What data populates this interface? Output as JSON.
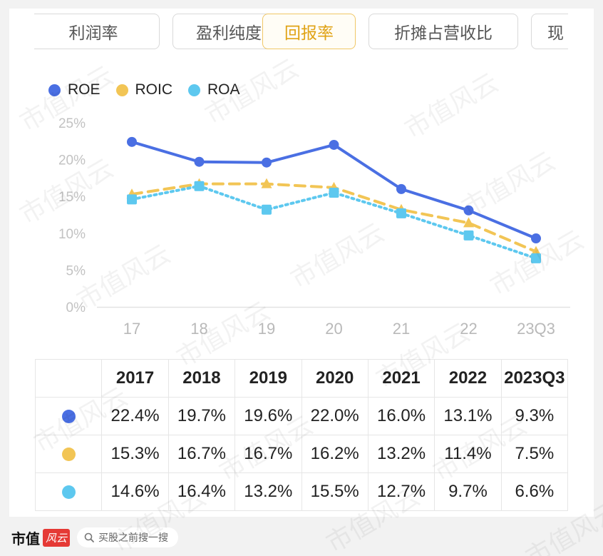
{
  "tabs": [
    {
      "label": "利润率",
      "active": false
    },
    {
      "label": "盈利纯度",
      "active": false
    },
    {
      "label": "回报率",
      "active": true
    },
    {
      "label": "折摊占营收比",
      "active": false
    },
    {
      "label": "现",
      "active": false
    }
  ],
  "colors": {
    "roe": "#4a6fe3",
    "roic": "#f2c555",
    "roa": "#5dc8ef",
    "active_tab": "#e0a316"
  },
  "chart_data": {
    "type": "line",
    "categories": [
      "17",
      "18",
      "19",
      "20",
      "21",
      "22",
      "23Q3"
    ],
    "series": [
      {
        "name": "ROE",
        "values": [
          22.4,
          19.7,
          19.6,
          22.0,
          16.0,
          13.1,
          9.3
        ],
        "style": "solid",
        "marker": "circle"
      },
      {
        "name": "ROIC",
        "values": [
          15.3,
          16.7,
          16.7,
          16.2,
          13.2,
          11.4,
          7.5
        ],
        "style": "dashed",
        "marker": "triangle"
      },
      {
        "name": "ROA",
        "values": [
          14.6,
          16.4,
          13.2,
          15.5,
          12.7,
          9.7,
          6.6
        ],
        "style": "dotted",
        "marker": "square"
      }
    ],
    "ylim": [
      0,
      25
    ],
    "yticks": [
      "0%",
      "5%",
      "10%",
      "15%",
      "20%",
      "25%"
    ],
    "legend": "top-left",
    "grid": false
  },
  "table": {
    "headers": [
      "",
      "2017",
      "2018",
      "2019",
      "2020",
      "2021",
      "2022",
      "2023Q3"
    ],
    "rows": [
      {
        "series": "roe",
        "cells": [
          "22.4%",
          "19.7%",
          "19.6%",
          "22.0%",
          "16.0%",
          "13.1%",
          "9.3%"
        ]
      },
      {
        "series": "roic",
        "cells": [
          "15.3%",
          "16.7%",
          "16.7%",
          "16.2%",
          "13.2%",
          "11.4%",
          "7.5%"
        ]
      },
      {
        "series": "roa",
        "cells": [
          "14.6%",
          "16.4%",
          "13.2%",
          "15.5%",
          "12.7%",
          "9.7%",
          "6.6%"
        ]
      }
    ]
  },
  "footer": {
    "brand": "市值",
    "brand_logo": "风云",
    "search_text": "买股之前搜一搜",
    "search_icon": "search-icon"
  },
  "watermark_text": "市值风云"
}
